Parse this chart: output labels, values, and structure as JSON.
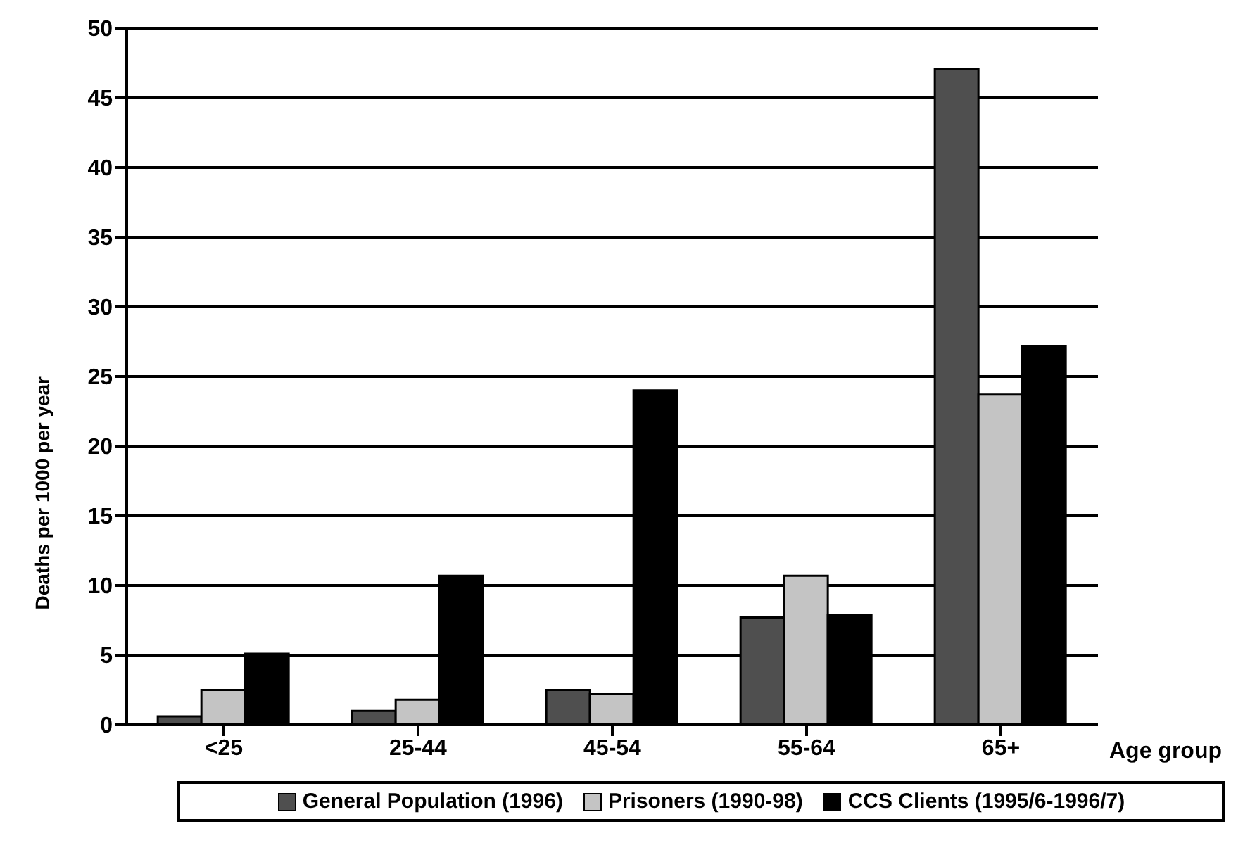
{
  "chart_data": {
    "type": "bar",
    "xlabel": "Age group",
    "ylabel": "Deaths per 1000 per year",
    "categories": [
      "<25",
      "25-44",
      "45-54",
      "55-64",
      "65+"
    ],
    "series": [
      {
        "name": "General Population (1996)",
        "color": "#4f4f4f",
        "values": [
          0.6,
          1.0,
          2.5,
          7.7,
          47.1
        ]
      },
      {
        "name": "Prisoners (1990-98)",
        "color": "#c4c4c4",
        "values": [
          2.5,
          1.8,
          2.2,
          10.7,
          23.7
        ]
      },
      {
        "name": "CCS Clients (1995/6-1996/7)",
        "color": "#000000",
        "values": [
          5.1,
          10.7,
          24.0,
          7.9,
          27.2
        ]
      }
    ],
    "ylim": [
      0,
      50
    ],
    "yticks": [
      0,
      5,
      10,
      15,
      20,
      25,
      30,
      35,
      40,
      45,
      50
    ],
    "grid": "y",
    "legend": "bottom"
  }
}
